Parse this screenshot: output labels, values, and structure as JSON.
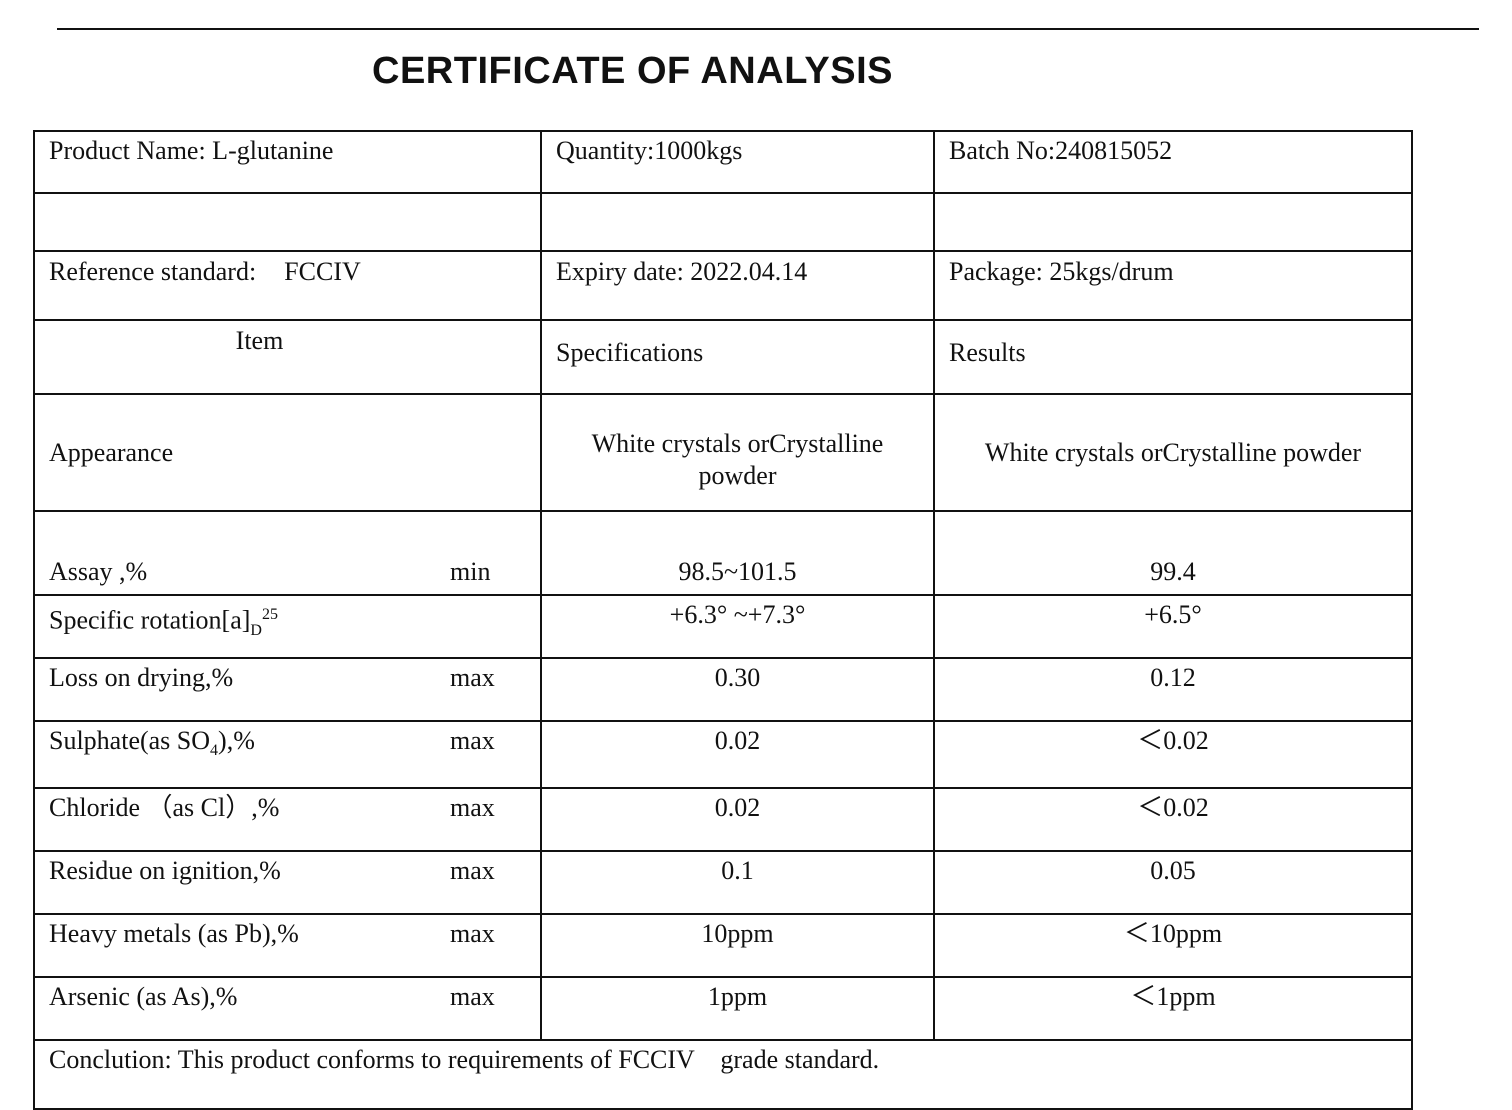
{
  "title": "CERTIFICATE OF ANALYSIS",
  "header": {
    "product_name": "Product Name: L-glutanine",
    "quantity": "Quantity:1000kgs",
    "batch_no": "Batch No:240815052",
    "reference_standard_label": "Reference standard:",
    "reference_standard_value": "FCCIV",
    "expiry_date": "Expiry date: 2022.04.14",
    "package": "Package: 25kgs/drum"
  },
  "columns": {
    "item": "Item",
    "specifications": "Specifications",
    "results": "Results"
  },
  "rows": [
    {
      "item": "Appearance",
      "limit": "",
      "spec": "White crystals orCrystalline powder",
      "result": "White crystals orCrystalline powder"
    },
    {
      "item": "Assay ,%",
      "limit": "min",
      "spec": "98.5~101.5",
      "result": "99.4"
    },
    {
      "item": "Specific rotation[a]",
      "item_sub": "D",
      "item_sup": "25",
      "limit": "",
      "spec": "+6.3° ~+7.3°",
      "result": "+6.5°"
    },
    {
      "item": "Loss on drying,%",
      "limit": "max",
      "spec": "0.30",
      "result": "0.12"
    },
    {
      "item": "Sulphate(as SO",
      "item_sub": "4",
      "item_tail": "),%",
      "limit": "max",
      "spec": "0.02",
      "result": "＜0.02"
    },
    {
      "item": "Chloride （as Cl）,%",
      "limit": "max",
      "spec": "0.02",
      "result": "＜0.02"
    },
    {
      "item": "Residue on ignition,%",
      "limit": "max",
      "spec": "0.1",
      "result": "0.05"
    },
    {
      "item": "Heavy metals (as Pb),%",
      "limit": "max",
      "spec": "10ppm",
      "result": "＜10ppm"
    },
    {
      "item": "Arsenic (as As),%",
      "limit": "max",
      "spec": "1ppm",
      "result": "＜1ppm"
    }
  ],
  "conclusion": "Conclution: This product conforms to requirements of FCCIV    grade standard."
}
